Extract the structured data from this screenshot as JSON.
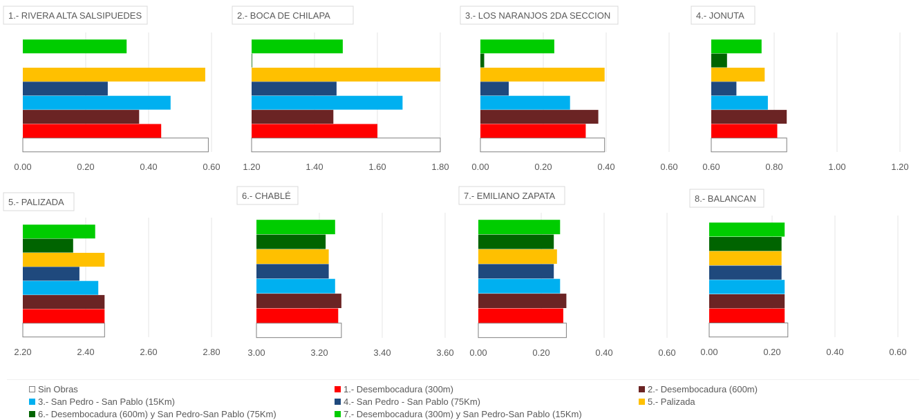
{
  "chart_data": [
    {
      "type": "bar",
      "title": "1.- RIVERA ALTA SALSIPUEDES",
      "xlim": [
        0,
        0.6
      ],
      "ticks": [
        "0.00",
        "0.20",
        "0.40",
        "0.60"
      ],
      "values": [
        0.59,
        0.44,
        0.37,
        0.47,
        0.27,
        0.58,
        null,
        0.33
      ]
    },
    {
      "type": "bar",
      "title": "2.- BOCA DE CHILAPA",
      "xlim": [
        1.2,
        1.8
      ],
      "ticks": [
        "1.20",
        "1.40",
        "1.60",
        "1.80"
      ],
      "values": [
        1.8,
        1.6,
        1.46,
        1.68,
        1.47,
        1.8,
        1.2,
        1.49
      ]
    },
    {
      "type": "bar",
      "title": "3.- LOS NARANJOS 2DA SECCION",
      "xlim": [
        0,
        0.6
      ],
      "ticks": [
        "0.00",
        "0.20",
        "0.40",
        "0.60"
      ],
      "values": [
        0.395,
        0.335,
        0.375,
        0.285,
        0.09,
        0.395,
        0.012,
        0.235
      ]
    },
    {
      "type": "bar",
      "title": "4.- JONUTA",
      "xlim": [
        0.6,
        1.2
      ],
      "ticks": [
        "0.60",
        "0.80",
        "1.00",
        "1.20"
      ],
      "values": [
        0.84,
        0.81,
        0.84,
        0.78,
        0.68,
        0.77,
        0.65,
        0.76
      ]
    },
    {
      "type": "bar",
      "title": "5.- PALIZADA",
      "xlim": [
        2.2,
        2.8
      ],
      "ticks": [
        "2.20",
        "2.40",
        "2.60",
        "2.80"
      ],
      "values": [
        2.46,
        2.46,
        2.46,
        2.44,
        2.38,
        2.46,
        2.36,
        2.43
      ]
    },
    {
      "type": "bar",
      "title": "6.- CHABLÉ",
      "xlim": [
        3.0,
        3.6
      ],
      "ticks": [
        "3.00",
        "3.20",
        "3.40",
        "3.60"
      ],
      "values": [
        3.27,
        3.26,
        3.27,
        3.25,
        3.23,
        3.23,
        3.22,
        3.25
      ]
    },
    {
      "type": "bar",
      "title": "7.- EMILIANO ZAPATA",
      "xlim": [
        0,
        0.6
      ],
      "ticks": [
        "0.00",
        "0.20",
        "0.40",
        "0.60"
      ],
      "values": [
        0.28,
        0.27,
        0.28,
        0.26,
        0.24,
        0.25,
        0.24,
        0.26
      ]
    },
    {
      "type": "bar",
      "title": "8.- BALANCAN",
      "xlim": [
        0,
        0.6
      ],
      "ticks": [
        "0.00",
        "0.20",
        "0.40",
        "0.60"
      ],
      "values": [
        0.25,
        0.24,
        0.24,
        0.24,
        0.23,
        0.23,
        0.23,
        0.24
      ]
    }
  ],
  "series": [
    {
      "name": "Sin Obras",
      "color": "#ffffff"
    },
    {
      "name": "1.- Desembocadura (300m)",
      "color": "#ff0000"
    },
    {
      "name": "2.- Desembocadura (600m)",
      "color": "#6b2424"
    },
    {
      "name": "3.- San Pedro - San Pablo (15Km)",
      "color": "#00b0f0"
    },
    {
      "name": "4.- San Pedro - San Pablo (75Km)",
      "color": "#1f497d"
    },
    {
      "name": "5.- Palizada",
      "color": "#ffc000"
    },
    {
      "name": "6.- Desembocadura (600m) y San Pedro-San Pablo (75Km)",
      "color": "#006400"
    },
    {
      "name": "7.- Desembocadura (300m) y San Pedro-San Pablo (15Km)",
      "color": "#00cc00"
    }
  ]
}
